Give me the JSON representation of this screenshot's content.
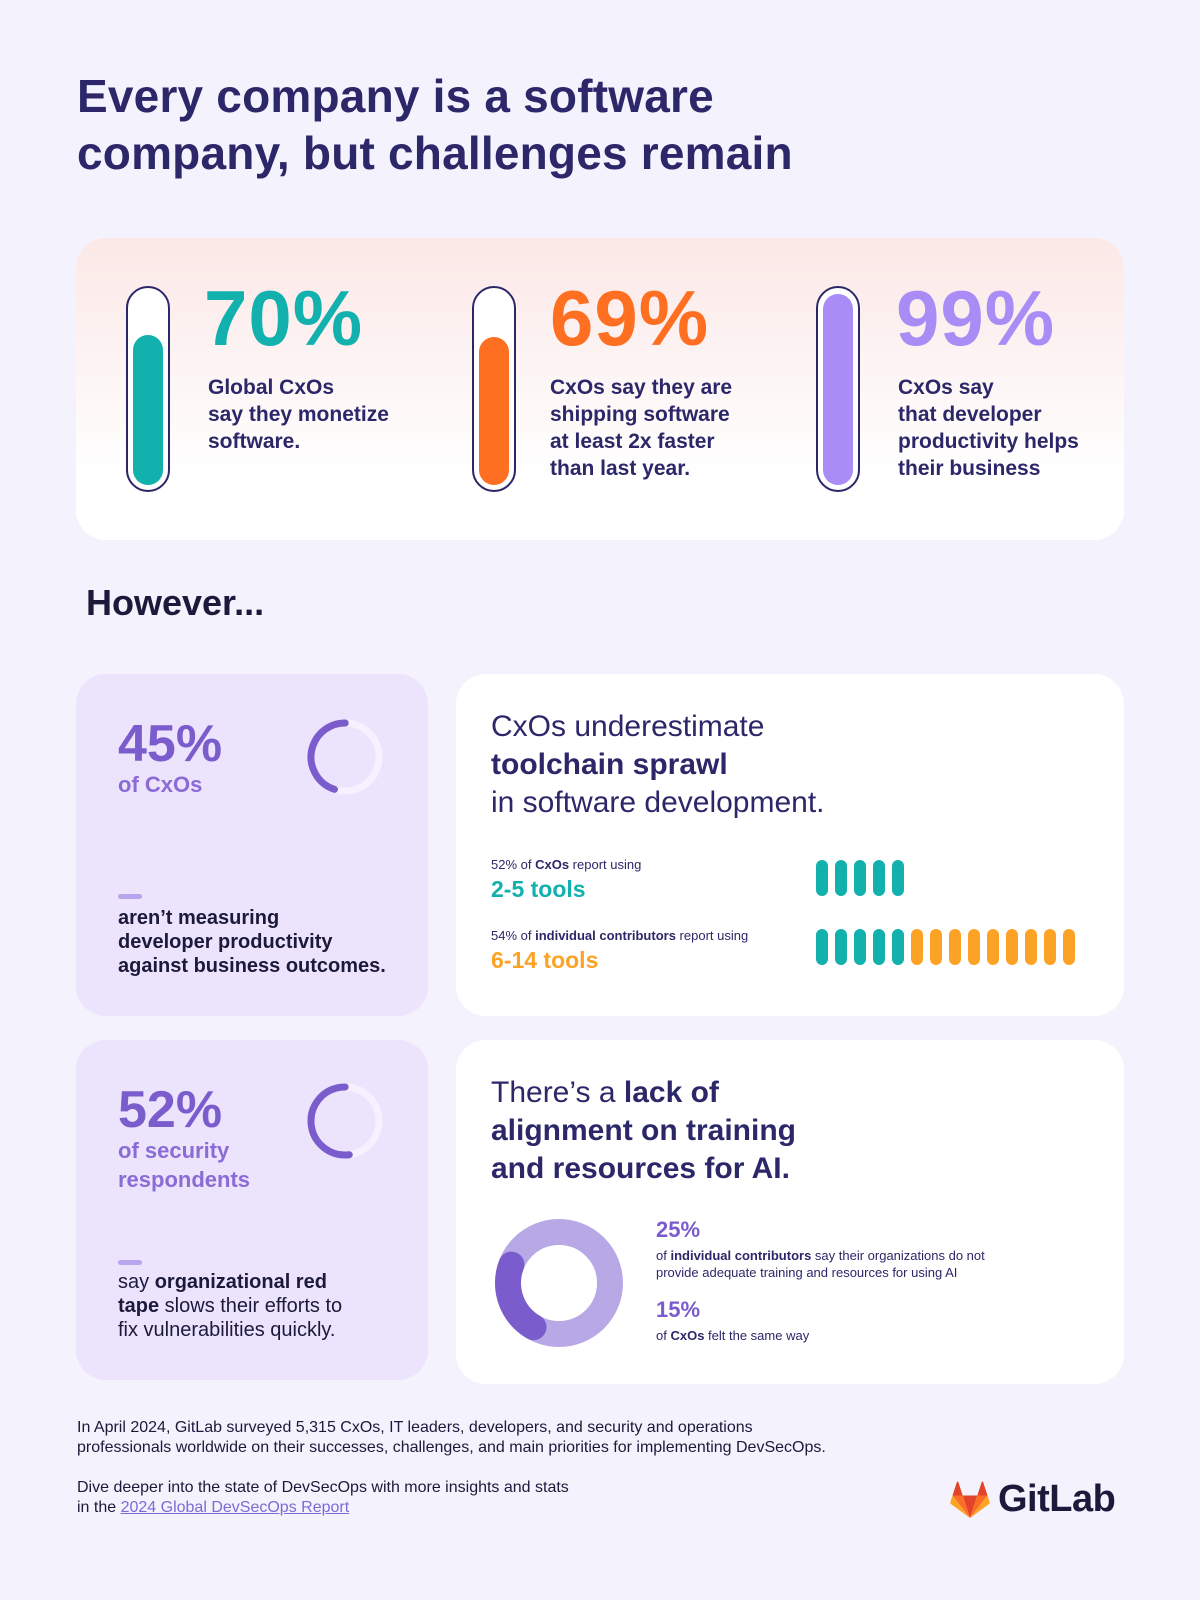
{
  "title_line1": "Every company is a software",
  "title_line2": "company, but challenges remain",
  "stats": [
    {
      "pct": "70%",
      "fill": 0.7,
      "color": "#12b1ad",
      "line1": "Global CxOs",
      "line2": "say they monetize",
      "line3": "software.",
      "line4": ""
    },
    {
      "pct": "69%",
      "fill": 0.69,
      "color": "#fe6f22",
      "line1": "CxOs say they are",
      "line2": "shipping software",
      "line3": "at least 2x faster",
      "line4": "than last year."
    },
    {
      "pct": "99%",
      "fill": 0.99,
      "color": "#a98cf5",
      "line1": "CxOs say",
      "line2": "that developer",
      "line3": "productivity helps",
      "line4": "their business"
    }
  ],
  "however": "However...",
  "card_measure": {
    "pct": "45%",
    "sub": "of CxOs",
    "ring_fraction": 0.45,
    "text_line1": "aren’t measuring",
    "text_line2": "developer productivity",
    "text_line3": "against business outcomes."
  },
  "card_redtape": {
    "pct": "52%",
    "sub1": "of security",
    "sub2": "respondents",
    "ring_fraction": 0.52,
    "text_pre": "say ",
    "text_bold1": "organizational red",
    "text_bold2": "tape",
    "text_post1": " slows their efforts to",
    "text_post2": "fix vulnerabilities quickly."
  },
  "toolchain": {
    "heading_line1": "CxOs underestimate",
    "heading_bold": "toolchain sprawl",
    "heading_line3": "in software development.",
    "cxo_pre": "52% of ",
    "cxo_bold": "CxOs",
    "cxo_post": " report using",
    "cxo_count": "2-5 tools",
    "cxo_pills_teal": 5,
    "ic_pre": "54% of ",
    "ic_bold": "individual contributors",
    "ic_post": " report using",
    "ic_count": "6-14 tools",
    "ic_pills_teal": 5,
    "ic_pills_orange": 9,
    "teal": "#12b1ad",
    "orange": "#fca326"
  },
  "ai": {
    "heading_pre": "There’s a ",
    "heading_bold1": "lack of",
    "heading_bold2": "alignment on training",
    "heading_bold3": "and resources for AI.",
    "pct1": "25%",
    "text1_pre": "of ",
    "text1_bold": "individual contributors",
    "text1_post": " say their organizations do not",
    "text1_line2": "provide adequate training and resources for using AI",
    "pct2": "15%",
    "text2_pre": "of ",
    "text2_bold": "CxOs",
    "text2_post": " felt the same way",
    "donut_fraction": 0.25
  },
  "footer": {
    "line1": "In April 2024, GitLab surveyed 5,315 CxOs, IT leaders, developers, and security and operations",
    "line2": "professionals worldwide on their successes, challenges, and main priorities for implementing DevSecOps.",
    "line3": "Dive deeper into the state of DevSecOps with more insights and stats",
    "line4_pre": "in the ",
    "link": "2024 Global DevSecOps Report"
  },
  "logo": {
    "text": "GitLab",
    "icon": "gitlab-tanuki-icon"
  }
}
